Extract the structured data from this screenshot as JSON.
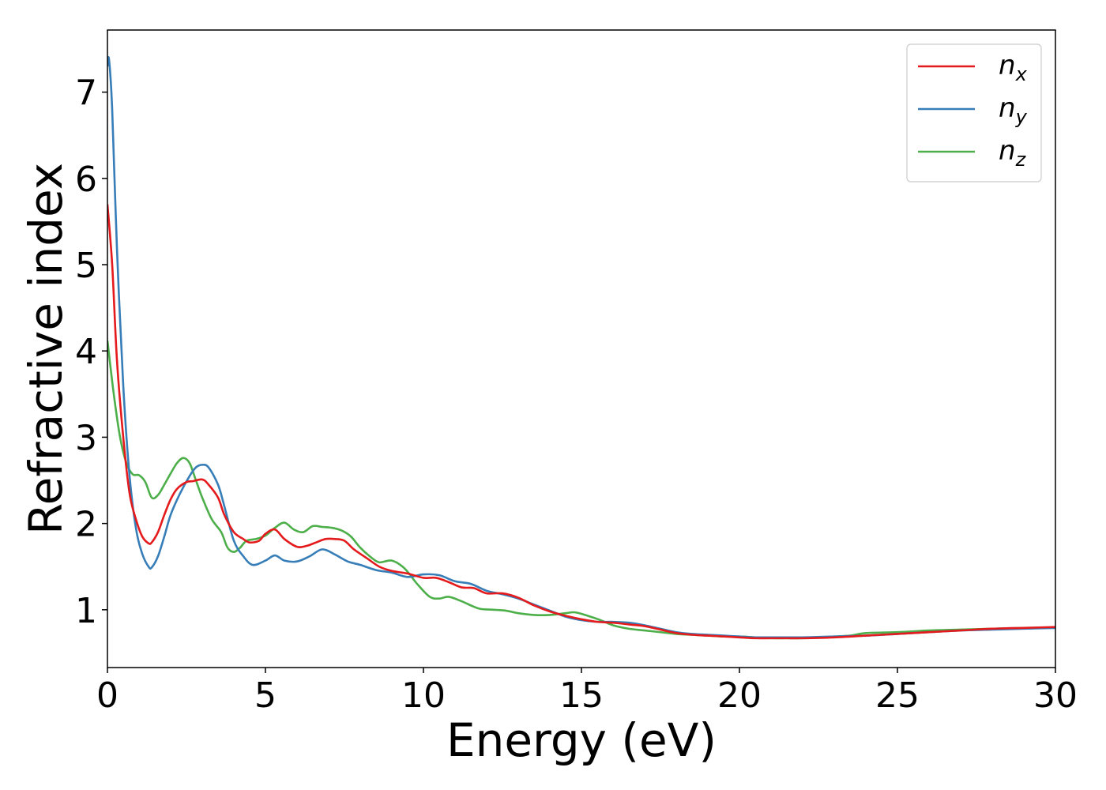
{
  "chart_data": {
    "type": "line",
    "title": "",
    "xlabel": "Energy (eV)",
    "ylabel": "Refractive index",
    "xlim": [
      0,
      30
    ],
    "ylim": [
      0.33,
      7.72
    ],
    "xticks": [
      0,
      5,
      10,
      15,
      20,
      25,
      30
    ],
    "yticks": [
      1,
      2,
      3,
      4,
      5,
      6,
      7
    ],
    "grid": false,
    "legend_position": "top-right",
    "series": [
      {
        "name": "n_x",
        "base": "n",
        "subscript": "x",
        "color": "#e41a1c",
        "x": [
          0,
          0.15,
          0.3,
          0.5,
          0.7,
          0.9,
          1.1,
          1.3,
          1.4,
          1.6,
          1.8,
          2.0,
          2.2,
          2.5,
          2.7,
          3.0,
          3.2,
          3.5,
          3.7,
          4.0,
          4.3,
          4.5,
          4.8,
          5.0,
          5.3,
          5.6,
          6.0,
          6.3,
          6.6,
          6.9,
          7.2,
          7.5,
          7.8,
          8.2,
          8.6,
          9.0,
          9.5,
          10.0,
          10.4,
          10.8,
          11.2,
          11.6,
          12.0,
          12.5,
          13.0,
          13.5,
          14.0,
          14.5,
          15.0,
          15.5,
          16.0,
          16.5,
          17.0,
          17.5,
          18.0,
          18.5,
          19.0,
          19.5,
          20.0,
          20.5,
          21.0,
          21.5,
          22.0,
          23.0,
          24.0,
          25.0,
          26.0,
          27.0,
          28.0,
          29.0,
          30.0
        ],
        "y": [
          5.7,
          5.0,
          3.9,
          3.0,
          2.35,
          2.05,
          1.85,
          1.77,
          1.78,
          1.9,
          2.1,
          2.28,
          2.4,
          2.48,
          2.49,
          2.51,
          2.45,
          2.3,
          2.1,
          1.9,
          1.82,
          1.78,
          1.8,
          1.88,
          1.93,
          1.82,
          1.73,
          1.74,
          1.78,
          1.82,
          1.82,
          1.8,
          1.7,
          1.6,
          1.5,
          1.45,
          1.42,
          1.37,
          1.37,
          1.32,
          1.26,
          1.25,
          1.19,
          1.19,
          1.14,
          1.05,
          0.98,
          0.93,
          0.89,
          0.86,
          0.85,
          0.83,
          0.81,
          0.77,
          0.73,
          0.71,
          0.7,
          0.69,
          0.68,
          0.67,
          0.67,
          0.67,
          0.67,
          0.68,
          0.7,
          0.72,
          0.74,
          0.76,
          0.78,
          0.79,
          0.8
        ]
      },
      {
        "name": "n_y",
        "base": "n",
        "subscript": "y",
        "color": "#377eb8",
        "x": [
          0,
          0.05,
          0.15,
          0.3,
          0.5,
          0.7,
          0.9,
          1.1,
          1.3,
          1.4,
          1.6,
          1.8,
          2.0,
          2.3,
          2.6,
          2.8,
          3.0,
          3.2,
          3.5,
          3.7,
          4.0,
          4.3,
          4.6,
          5.0,
          5.3,
          5.6,
          6.0,
          6.4,
          6.8,
          7.2,
          7.6,
          8.0,
          8.5,
          9.0,
          9.5,
          10.0,
          10.5,
          11.0,
          11.5,
          12.0,
          12.5,
          13.0,
          13.5,
          14.0,
          14.5,
          15.0,
          15.5,
          16.0,
          16.5,
          17.0,
          17.5,
          18.0,
          18.5,
          19.0,
          19.5,
          20.0,
          20.5,
          21.0,
          22.0,
          23.0,
          24.0,
          25.0,
          26.0,
          27.0,
          28.0,
          29.0,
          30.0
        ],
        "y": [
          7.3,
          7.38,
          6.8,
          5.2,
          3.6,
          2.55,
          1.95,
          1.65,
          1.5,
          1.49,
          1.62,
          1.85,
          2.1,
          2.35,
          2.55,
          2.65,
          2.68,
          2.65,
          2.45,
          2.2,
          1.8,
          1.62,
          1.52,
          1.57,
          1.63,
          1.57,
          1.56,
          1.62,
          1.7,
          1.64,
          1.56,
          1.52,
          1.46,
          1.43,
          1.38,
          1.41,
          1.4,
          1.33,
          1.3,
          1.22,
          1.18,
          1.13,
          1.06,
          0.99,
          0.92,
          0.88,
          0.86,
          0.86,
          0.85,
          0.82,
          0.78,
          0.74,
          0.72,
          0.71,
          0.7,
          0.69,
          0.68,
          0.68,
          0.68,
          0.69,
          0.7,
          0.72,
          0.74,
          0.76,
          0.77,
          0.78,
          0.79
        ]
      },
      {
        "name": "n_z",
        "base": "n",
        "subscript": "z",
        "color": "#4daf4a",
        "x": [
          0,
          0.2,
          0.4,
          0.6,
          0.8,
          1.0,
          1.2,
          1.4,
          1.6,
          1.8,
          2.0,
          2.2,
          2.4,
          2.6,
          2.8,
          3.0,
          3.3,
          3.6,
          3.8,
          4.0,
          4.2,
          4.4,
          4.7,
          5.0,
          5.3,
          5.6,
          5.9,
          6.2,
          6.5,
          6.8,
          7.1,
          7.4,
          7.7,
          8.0,
          8.3,
          8.6,
          9.0,
          9.4,
          9.8,
          10.2,
          10.5,
          10.8,
          11.2,
          11.5,
          11.8,
          12.2,
          12.6,
          13.0,
          13.5,
          14.0,
          14.5,
          14.8,
          15.2,
          15.6,
          16.0,
          16.5,
          17.0,
          17.5,
          18.0,
          18.5,
          19.0,
          19.5,
          20.0,
          20.5,
          21.0,
          21.5,
          22.0,
          22.5,
          23.0,
          23.5,
          24.0,
          25.0,
          26.0,
          27.0,
          28.0,
          29.0,
          30.0
        ],
        "y": [
          4.12,
          3.5,
          3.0,
          2.7,
          2.57,
          2.56,
          2.48,
          2.3,
          2.33,
          2.45,
          2.58,
          2.7,
          2.76,
          2.7,
          2.5,
          2.3,
          2.05,
          1.9,
          1.72,
          1.67,
          1.72,
          1.8,
          1.82,
          1.86,
          1.95,
          2.01,
          1.93,
          1.9,
          1.97,
          1.96,
          1.95,
          1.92,
          1.85,
          1.72,
          1.62,
          1.55,
          1.57,
          1.48,
          1.3,
          1.15,
          1.13,
          1.15,
          1.1,
          1.05,
          1.01,
          1.0,
          0.99,
          0.96,
          0.94,
          0.94,
          0.96,
          0.97,
          0.93,
          0.88,
          0.82,
          0.78,
          0.76,
          0.74,
          0.72,
          0.71,
          0.7,
          0.69,
          0.69,
          0.68,
          0.67,
          0.67,
          0.67,
          0.68,
          0.69,
          0.7,
          0.73,
          0.74,
          0.76,
          0.77,
          0.78,
          0.79,
          0.79
        ]
      }
    ]
  }
}
